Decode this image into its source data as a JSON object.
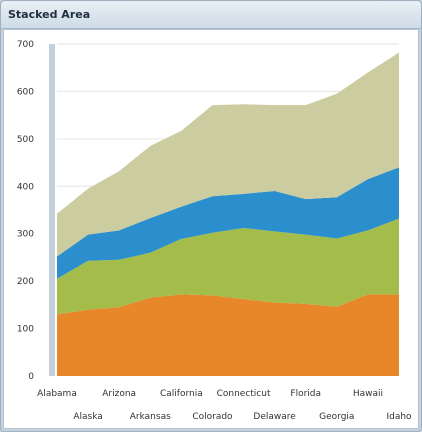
{
  "window": {
    "title": "Stacked Area"
  },
  "chart_data": {
    "type": "area",
    "stacked": true,
    "title": "Stacked Area",
    "xlabel": "",
    "ylabel": "",
    "ylim": [
      0,
      700
    ],
    "yticks": [
      0,
      100,
      200,
      300,
      400,
      500,
      600,
      700
    ],
    "ytick_labels": [
      "0",
      "100",
      "200",
      "300",
      "400",
      "500",
      "600",
      "700"
    ],
    "grid": true,
    "legend": "none",
    "categories": [
      "Alabama",
      "Alaska",
      "Arizona",
      "Arkansas",
      "California",
      "Colorado",
      "Connecticut",
      "Delaware",
      "Florida",
      "Georgia",
      "Hawaii",
      "Idaho"
    ],
    "series": [
      {
        "color": "#e8862a",
        "values": [
          130,
          140,
          145,
          165,
          172,
          170,
          162,
          155,
          152,
          146,
          172,
          172
        ]
      },
      {
        "color": "#a4bc4a",
        "values": [
          75,
          103,
          100,
          95,
          117,
          132,
          150,
          150,
          146,
          144,
          135,
          160
        ]
      },
      {
        "color": "#2a8fcc",
        "values": [
          47,
          55,
          62,
          73,
          68,
          77,
          72,
          85,
          75,
          87,
          108,
          108
        ]
      },
      {
        "color": "#cbcc9f",
        "values": [
          90,
          97,
          125,
          152,
          160,
          192,
          189,
          181,
          198,
          218,
          225,
          242
        ]
      }
    ]
  }
}
